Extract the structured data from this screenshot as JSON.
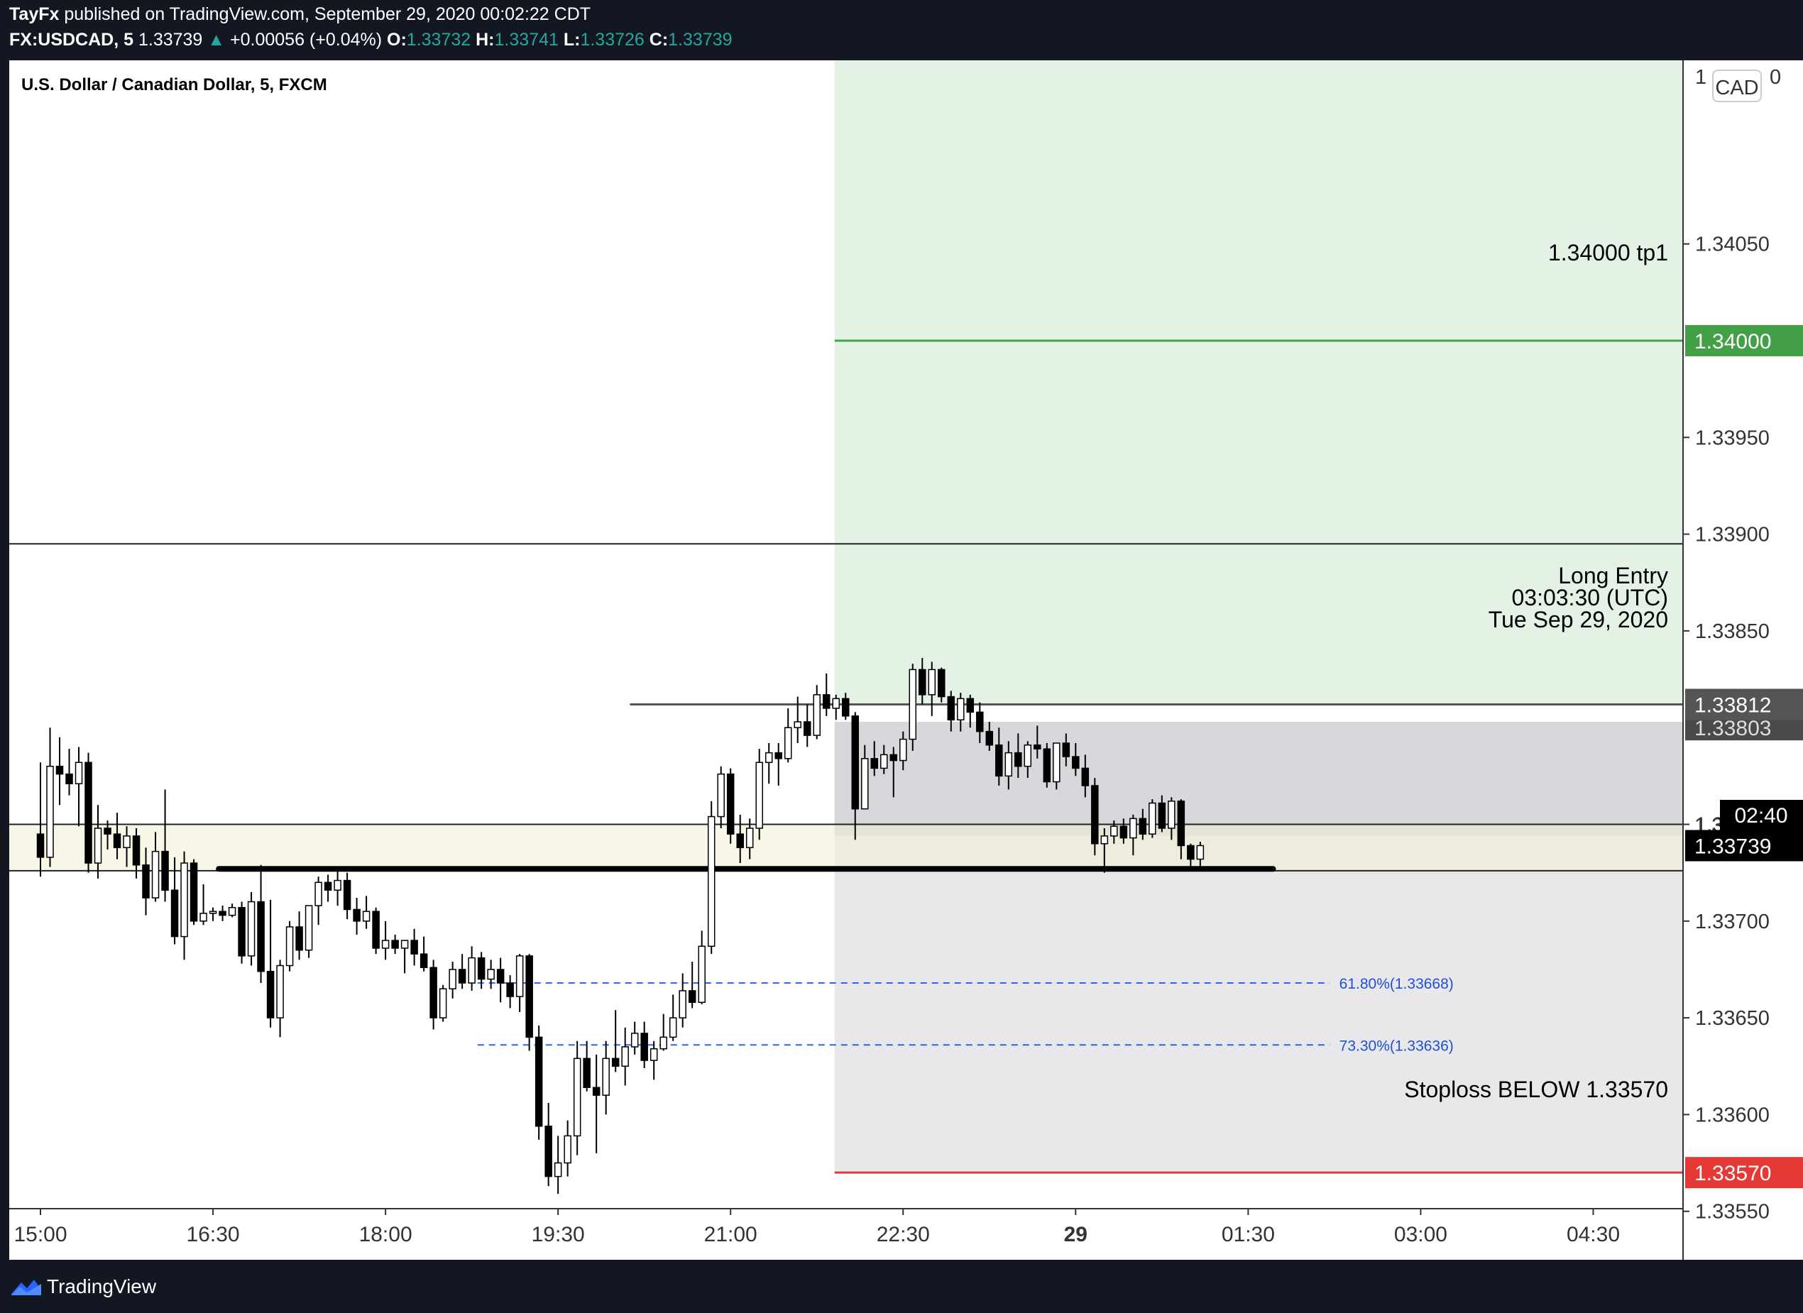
{
  "header": {
    "author": "TayFx",
    "published": "published on TradingView.com, September 29, 2020 00:02:22 CDT",
    "symbol": "FX:USDCAD, 5",
    "last": "1.33739",
    "change": "+0.00056 (+0.04%)",
    "open_label": "O:",
    "open": "1.33732",
    "high_label": "H:",
    "high": "1.33741",
    "low_label": "L:",
    "low": "1.33726",
    "close_label": "C:",
    "close": "1.33739",
    "arrow_icon": "triangle-up-icon"
  },
  "chart_data": {
    "type": "candlestick",
    "title": "U.S. Dollar / Canadian Dollar, 5, FXCM",
    "currency": "CAD",
    "ylim": [
      1.3352,
      1.3411
    ],
    "yticks": [
      "1.34050",
      "1.33950",
      "1.33900",
      "1.33850",
      "1.33750",
      "1.33700",
      "1.33650",
      "1.33600",
      "1.33550"
    ],
    "xticks": [
      {
        "label": "15:00",
        "t": 0
      },
      {
        "label": "16:30",
        "t": 18
      },
      {
        "label": "18:00",
        "t": 36
      },
      {
        "label": "19:30",
        "t": 54
      },
      {
        "label": "21:00",
        "t": 72
      },
      {
        "label": "22:30",
        "t": 90
      },
      {
        "label": "29",
        "t": 108,
        "bold": true
      },
      {
        "label": "01:30",
        "t": 126
      },
      {
        "label": "03:00",
        "t": 144
      },
      {
        "label": "04:30",
        "t": 162
      }
    ],
    "candles": [
      [
        1.33745,
        1.33782,
        1.33723,
        1.33733
      ],
      [
        1.33733,
        1.338,
        1.33728,
        1.3378
      ],
      [
        1.3378,
        1.33795,
        1.3376,
        1.33776
      ],
      [
        1.33776,
        1.33789,
        1.33765,
        1.33771
      ],
      [
        1.33771,
        1.3379,
        1.33749,
        1.33782
      ],
      [
        1.33782,
        1.33787,
        1.33725,
        1.3373
      ],
      [
        1.3373,
        1.3376,
        1.33722,
        1.33748
      ],
      [
        1.33748,
        1.33752,
        1.33737,
        1.33745
      ],
      [
        1.33745,
        1.33756,
        1.33732,
        1.33738
      ],
      [
        1.33738,
        1.33749,
        1.33728,
        1.33744
      ],
      [
        1.33744,
        1.33748,
        1.33722,
        1.33729
      ],
      [
        1.33729,
        1.33738,
        1.33703,
        1.33712
      ],
      [
        1.33712,
        1.33746,
        1.3371,
        1.33736
      ],
      [
        1.33736,
        1.33768,
        1.3371,
        1.33716
      ],
      [
        1.33716,
        1.33733,
        1.33688,
        1.33692
      ],
      [
        1.33692,
        1.33736,
        1.3368,
        1.3373
      ],
      [
        1.3373,
        1.33732,
        1.33698,
        1.337
      ],
      [
        1.337,
        1.33719,
        1.33698,
        1.33704
      ],
      [
        1.33704,
        1.33707,
        1.337,
        1.33705
      ],
      [
        1.33705,
        1.33708,
        1.337,
        1.33703
      ],
      [
        1.33703,
        1.33709,
        1.33702,
        1.33707
      ],
      [
        1.33707,
        1.3371,
        1.33678,
        1.33682
      ],
      [
        1.33682,
        1.33715,
        1.33677,
        1.3371
      ],
      [
        1.3371,
        1.33729,
        1.33668,
        1.33674
      ],
      [
        1.33674,
        1.33711,
        1.33645,
        1.3365
      ],
      [
        1.3365,
        1.3368,
        1.3364,
        1.33677
      ],
      [
        1.33677,
        1.337,
        1.33674,
        1.33697
      ],
      [
        1.33697,
        1.33705,
        1.3368,
        1.33685
      ],
      [
        1.33685,
        1.33705,
        1.33681,
        1.33708
      ],
      [
        1.33708,
        1.33723,
        1.33698,
        1.3372
      ],
      [
        1.3372,
        1.33724,
        1.3371,
        1.33716
      ],
      [
        1.33716,
        1.33727,
        1.33708,
        1.33721
      ],
      [
        1.33721,
        1.33725,
        1.33701,
        1.33706
      ],
      [
        1.33706,
        1.33712,
        1.33693,
        1.337
      ],
      [
        1.337,
        1.33713,
        1.33696,
        1.33705
      ],
      [
        1.33705,
        1.33707,
        1.33683,
        1.33686
      ],
      [
        1.33686,
        1.337,
        1.3368,
        1.3369
      ],
      [
        1.3369,
        1.33693,
        1.33683,
        1.33686
      ],
      [
        1.33686,
        1.33689,
        1.33673,
        1.3369
      ],
      [
        1.3369,
        1.33696,
        1.33677,
        1.33683
      ],
      [
        1.33683,
        1.33692,
        1.33674,
        1.33676
      ],
      [
        1.33676,
        1.3368,
        1.33644,
        1.3365
      ],
      [
        1.3365,
        1.33667,
        1.33648,
        1.33665
      ],
      [
        1.33665,
        1.33679,
        1.3366,
        1.33675
      ],
      [
        1.33675,
        1.33683,
        1.33665,
        1.33668
      ],
      [
        1.33668,
        1.33687,
        1.33664,
        1.33681
      ],
      [
        1.33681,
        1.33684,
        1.33665,
        1.3367
      ],
      [
        1.3367,
        1.3368,
        1.33665,
        1.33675
      ],
      [
        1.33675,
        1.33681,
        1.33658,
        1.33668
      ],
      [
        1.33668,
        1.33672,
        1.33655,
        1.33661
      ],
      [
        1.33661,
        1.33683,
        1.33653,
        1.33682
      ],
      [
        1.33682,
        1.33683,
        1.33633,
        1.3364
      ],
      [
        1.3364,
        1.33646,
        1.33587,
        1.33594
      ],
      [
        1.33594,
        1.33606,
        1.33563,
        1.33568
      ],
      [
        1.33568,
        1.33589,
        1.33559,
        1.33575
      ],
      [
        1.33575,
        1.33597,
        1.33568,
        1.33589
      ],
      [
        1.33589,
        1.33638,
        1.33579,
        1.33629
      ],
      [
        1.33629,
        1.33638,
        1.33612,
        1.33614
      ],
      [
        1.33614,
        1.33631,
        1.3358,
        1.3361
      ],
      [
        1.3361,
        1.33638,
        1.336,
        1.33629
      ],
      [
        1.33629,
        1.33654,
        1.33622,
        1.33625
      ],
      [
        1.33625,
        1.33645,
        1.33615,
        1.33635
      ],
      [
        1.33635,
        1.33648,
        1.33631,
        1.33642
      ],
      [
        1.33642,
        1.33648,
        1.33624,
        1.33628
      ],
      [
        1.33628,
        1.33638,
        1.33618,
        1.33634
      ],
      [
        1.33634,
        1.33652,
        1.33633,
        1.3364
      ],
      [
        1.3364,
        1.33662,
        1.33638,
        1.3365
      ],
      [
        1.3365,
        1.33673,
        1.33645,
        1.33664
      ],
      [
        1.33664,
        1.33679,
        1.33655,
        1.33658
      ],
      [
        1.33658,
        1.33695,
        1.33657,
        1.33687
      ],
      [
        1.33687,
        1.33762,
        1.33683,
        1.33754
      ],
      [
        1.33754,
        1.3378,
        1.33748,
        1.33776
      ],
      [
        1.33776,
        1.33779,
        1.3374,
        1.33745
      ],
      [
        1.33745,
        1.33755,
        1.3373,
        1.33738
      ],
      [
        1.33738,
        1.33753,
        1.33732,
        1.33748
      ],
      [
        1.33748,
        1.33789,
        1.33742,
        1.33782
      ],
      [
        1.33782,
        1.33792,
        1.33771,
        1.33787
      ],
      [
        1.33787,
        1.33792,
        1.3377,
        1.33784
      ],
      [
        1.33784,
        1.3381,
        1.33782,
        1.338
      ],
      [
        1.338,
        1.33816,
        1.33792,
        1.33803
      ],
      [
        1.33803,
        1.33812,
        1.3379,
        1.33796
      ],
      [
        1.33796,
        1.33822,
        1.33794,
        1.33817
      ],
      [
        1.33817,
        1.33828,
        1.33806,
        1.3381
      ],
      [
        1.3381,
        1.33817,
        1.33804,
        1.33815
      ],
      [
        1.33815,
        1.33818,
        1.33804,
        1.33806
      ],
      [
        1.33806,
        1.33808,
        1.33742,
        1.33758
      ],
      [
        1.33758,
        1.33791,
        1.33758,
        1.33784
      ],
      [
        1.33784,
        1.33793,
        1.33775,
        1.33779
      ],
      [
        1.33779,
        1.33791,
        1.33776,
        1.33786
      ],
      [
        1.33786,
        1.3379,
        1.33764,
        1.33783
      ],
      [
        1.33783,
        1.33798,
        1.33778,
        1.33794
      ],
      [
        1.33794,
        1.33833,
        1.33788,
        1.3383
      ],
      [
        1.3383,
        1.33836,
        1.33812,
        1.33817
      ],
      [
        1.33817,
        1.33834,
        1.33806,
        1.3383
      ],
      [
        1.3383,
        1.33831,
        1.33813,
        1.33816
      ],
      [
        1.33816,
        1.33819,
        1.33798,
        1.33804
      ],
      [
        1.33804,
        1.33818,
        1.33798,
        1.33815
      ],
      [
        1.33815,
        1.33817,
        1.338,
        1.33808
      ],
      [
        1.33808,
        1.33813,
        1.33792,
        1.33798
      ],
      [
        1.33798,
        1.33803,
        1.33788,
        1.33791
      ],
      [
        1.33791,
        1.338,
        1.3377,
        1.33775
      ],
      [
        1.33775,
        1.33793,
        1.33768,
        1.33787
      ],
      [
        1.33787,
        1.33797,
        1.33774,
        1.3378
      ],
      [
        1.3378,
        1.33793,
        1.33774,
        1.33791
      ],
      [
        1.33791,
        1.33801,
        1.33784,
        1.33789
      ],
      [
        1.33789,
        1.33792,
        1.33769,
        1.33772
      ],
      [
        1.33772,
        1.33792,
        1.33768,
        1.33792
      ],
      [
        1.33792,
        1.33797,
        1.3378,
        1.33785
      ],
      [
        1.33785,
        1.33792,
        1.33775,
        1.33779
      ],
      [
        1.33779,
        1.33786,
        1.33764,
        1.3377
      ],
      [
        1.3377,
        1.33774,
        1.33734,
        1.3374
      ],
      [
        1.3374,
        1.33748,
        1.33725,
        1.33744
      ],
      [
        1.33744,
        1.33752,
        1.3374,
        1.33749
      ],
      [
        1.33749,
        1.33753,
        1.3374,
        1.33743
      ],
      [
        1.33743,
        1.33755,
        1.33734,
        1.33753
      ],
      [
        1.33753,
        1.33758,
        1.33742,
        1.33745
      ],
      [
        1.33745,
        1.33763,
        1.33743,
        1.33761
      ],
      [
        1.33761,
        1.33765,
        1.33746,
        1.33748
      ],
      [
        1.33748,
        1.33764,
        1.33742,
        1.33762
      ],
      [
        1.33762,
        1.33763,
        1.33732,
        1.33739
      ],
      [
        1.33739,
        1.3374,
        1.33726,
        1.33732
      ],
      [
        1.33732,
        1.33741,
        1.33726,
        1.33739
      ]
    ],
    "levels": {
      "tp": {
        "price": 1.34,
        "text": "1.34000 tp1",
        "badge": "1.34000",
        "color": "#43a047"
      },
      "entry": {
        "price": 1.33812,
        "lines": [
          "Long Entry",
          "03:03:30 (UTC)",
          "Tue Sep 29, 2020"
        ],
        "badge": "1.33812"
      },
      "partial_badge": "1.33803",
      "stop": {
        "price": 1.3357,
        "text": "Stoploss BELOW 1.33570",
        "badge": "1.33570",
        "color": "#e53935"
      },
      "resistance": 1.33895,
      "current_upper": 1.3375,
      "support": 1.33726,
      "current_badge": "1.33739",
      "countdown": "02:40"
    },
    "fib": [
      {
        "label": "61.80%(1.33668)",
        "price": 1.33668
      },
      {
        "label": "73.30%(1.33636)",
        "price": 1.33636
      }
    ]
  },
  "footer": {
    "brand": "TradingView",
    "logo_icon": "tradingview-logo-icon"
  }
}
